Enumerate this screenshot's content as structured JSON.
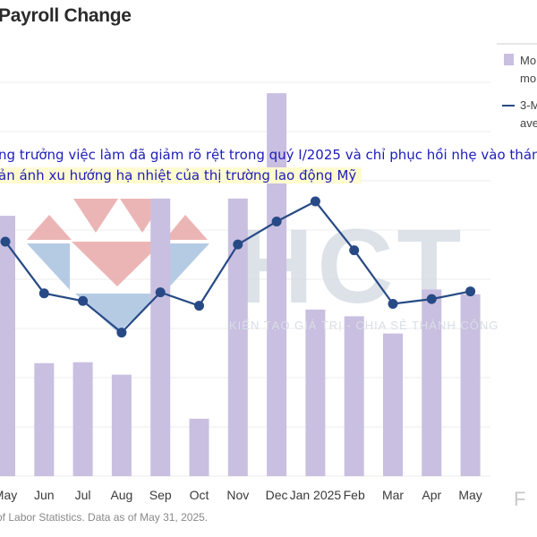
{
  "title": "Payroll Change",
  "caption": {
    "line1": "ng trưởng việc làm đã giảm rõ rệt trong quý I/2025 và chỉ phục hồi nhẹ vào thán",
    "line2": "ản ánh xu hướng hạ nhiệt của thị trường lao động Mỹ"
  },
  "source": "of Labor Statistics. Data as of May 31, 2025.",
  "brand_mark": "F",
  "watermark": {
    "logo_text": "HCT",
    "tagline": "KIẾN TẠO GIÁ TRỊ - CHIA SẺ THÀNH CÔNG"
  },
  "legend": {
    "bar_label_lines": [
      "Mo",
      "mo"
    ],
    "line_label_lines": [
      "3-M",
      "ave"
    ]
  },
  "colors": {
    "bar": "#c9bfe0",
    "line": "#274a86",
    "watermark_red": "#e9a9a9",
    "watermark_blue": "#a9c3e0",
    "watermark_gray": "#d7dde4"
  },
  "chart_data": {
    "type": "bar",
    "categories": [
      "May",
      "Jun",
      "Jul",
      "Aug",
      "Sep",
      "Oct",
      "Nov",
      "Dec",
      "Jan 2025",
      "Feb",
      "Mar",
      "Apr",
      "May"
    ],
    "series": [
      {
        "kind": "bar",
        "values": [
          272,
          118,
          119,
          106,
          290,
          60,
          290,
          400,
          174,
          167,
          149,
          195,
          190
        ]
      },
      {
        "kind": "line",
        "values": [
          245,
          191,
          183,
          150,
          192,
          178,
          242,
          266,
          287,
          236,
          180,
          185,
          193
        ]
      }
    ],
    "ylim": [
      0,
      460
    ],
    "grid": true
  }
}
